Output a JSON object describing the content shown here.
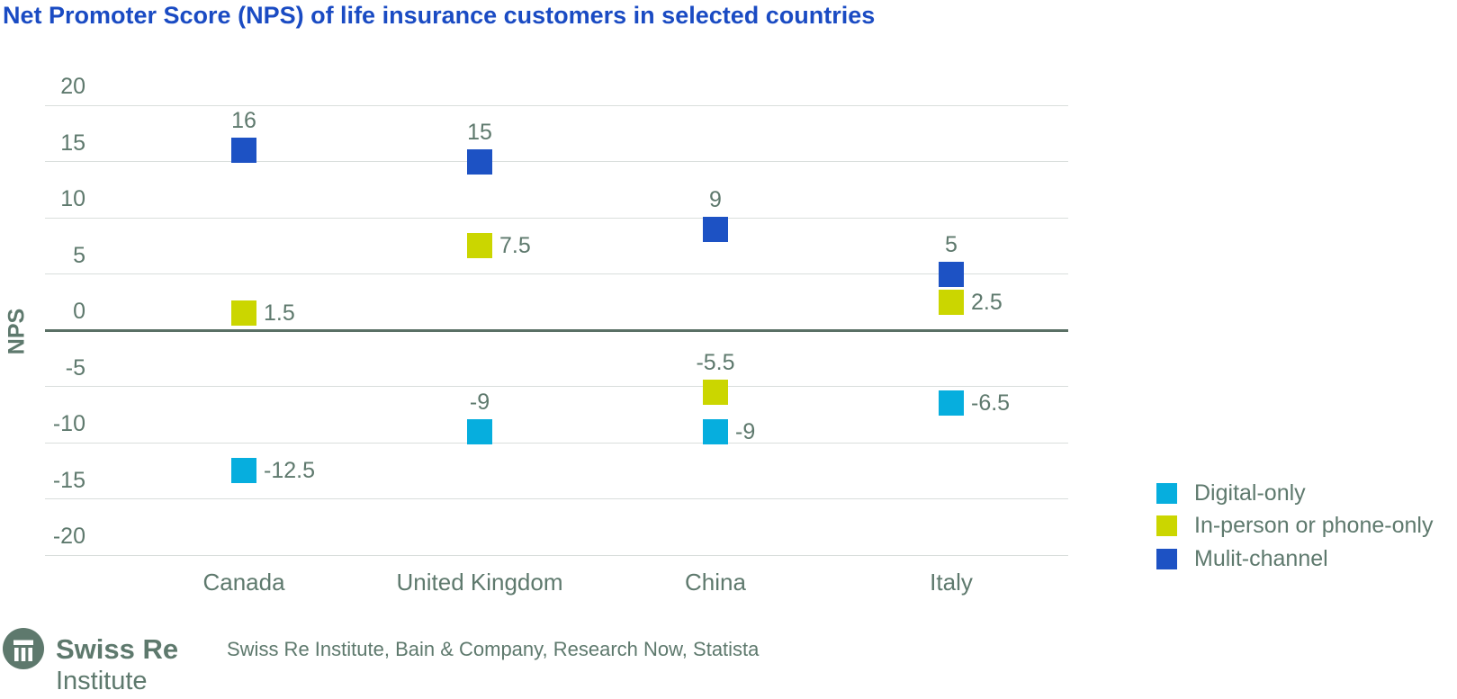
{
  "title": "Net Promoter Score (NPS) of life insurance customers in selected countries",
  "colors": {
    "title_blue": "#1A4BC3",
    "text_grey": "#5E796D",
    "gridline": "#D9DEDC",
    "zero_line": "#5A7065",
    "background": "#FFFFFF"
  },
  "chart_data": {
    "type": "scatter",
    "title": "Net Promoter Score (NPS) of life insurance customers in selected countries",
    "xlabel": "",
    "ylabel": "NPS",
    "ylim": [
      -20,
      20
    ],
    "yticks": [
      20,
      15,
      10,
      5,
      0,
      -5,
      -10,
      -15,
      -20
    ],
    "grid": true,
    "legend_position": "bottom-right",
    "categories": [
      "Canada",
      "United Kingdom",
      "China",
      "Italy"
    ],
    "series": [
      {
        "name": "Digital-only",
        "color": "#06AEDE",
        "values": [
          -12.5,
          -9,
          -9,
          -6.5
        ],
        "label_positions": [
          "right",
          "top",
          "right",
          "right"
        ]
      },
      {
        "name": "In-person or phone-only",
        "color": "#CBD600",
        "values": [
          1.5,
          7.5,
          -5.5,
          2.5
        ],
        "label_positions": [
          "right",
          "right",
          "top",
          "right"
        ]
      },
      {
        "name": "Mulit-channel",
        "color": "#1D52C4",
        "values": [
          16,
          15,
          9,
          5
        ],
        "label_positions": [
          "top",
          "top",
          "top",
          "top"
        ]
      }
    ]
  },
  "footer": {
    "brand": "Swiss Re",
    "brand_sub": "Institute",
    "source": "Swiss Re Institute, Bain & Company, Research Now, Statista"
  }
}
